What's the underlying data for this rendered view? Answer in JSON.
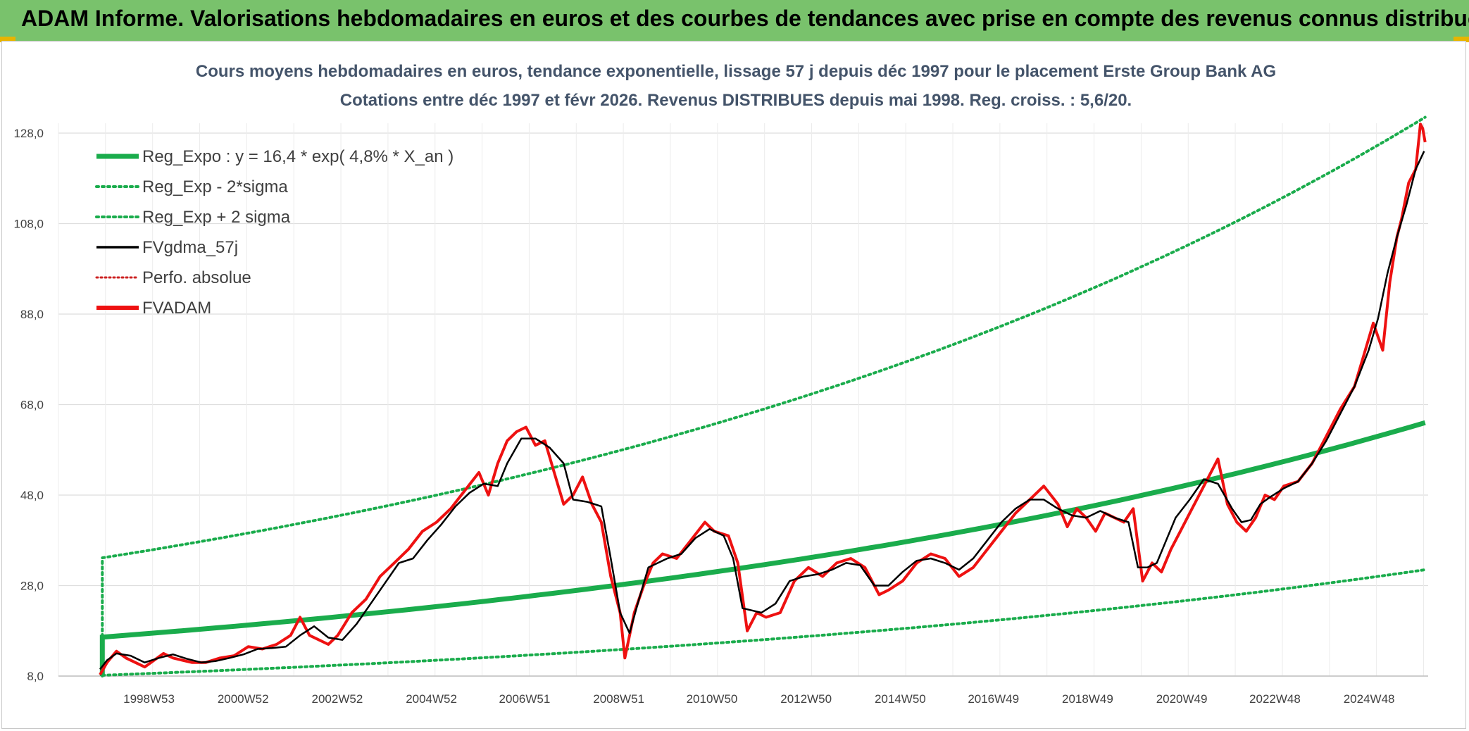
{
  "header": {
    "title": "ADAM Informe. Valorisations hebdomadaires en euros et des courbes de tendances avec prise en compte des revenus connus distribués"
  },
  "colors": {
    "banner": "#79c26c",
    "reg": "#1aac4c",
    "fv": "#000000",
    "adam": "#ee1111",
    "perfo": "#cc2222"
  },
  "chart_data": {
    "type": "line",
    "title_lines": [
      "Cours moyens hebdomadaires en euros, tendance exponentielle, lissage 57 j depuis déc 1997 pour le placement Erste Group Bank AG",
      "Cotations entre déc 1997 et févr 2026. Revenus DISTRIBUES depuis mai 1998. Reg. croiss. : 5,6/20."
    ],
    "x_range": [
      1997.92,
      2026.12
    ],
    "ylim": [
      8,
      128
    ],
    "yticks": [
      "8,0",
      "28,0",
      "48,0",
      "68,0",
      "88,0",
      "108,0",
      "128,0"
    ],
    "ytick_values": [
      8,
      28,
      48,
      68,
      88,
      108,
      128
    ],
    "xticks": [
      {
        "label": "1998W53",
        "x": 1998.99
      },
      {
        "label": "2000W52",
        "x": 2000.99
      },
      {
        "label": "2002W52",
        "x": 2002.99
      },
      {
        "label": "2004W52",
        "x": 2004.99
      },
      {
        "label": "2006W51",
        "x": 2006.97
      },
      {
        "label": "2008W51",
        "x": 2008.97
      },
      {
        "label": "2010W50",
        "x": 2010.95
      },
      {
        "label": "2012W50",
        "x": 2012.95
      },
      {
        "label": "2014W50",
        "x": 2014.95
      },
      {
        "label": "2016W49",
        "x": 2016.93
      },
      {
        "label": "2018W49",
        "x": 2018.93
      },
      {
        "label": "2020W49",
        "x": 2020.93
      },
      {
        "label": "2022W48",
        "x": 2022.91
      },
      {
        "label": "2024W48",
        "x": 2024.91
      }
    ],
    "grid": true,
    "legend_position": "top-left",
    "regression": {
      "a": 16.4,
      "rate": 0.048,
      "lower": 8.3,
      "upper": 33.2,
      "lower_end": 31.5,
      "upper_end": 131.5,
      "end": 64.0
    },
    "series": [
      {
        "name": "Reg_Expo : y = 16,4 * exp( 4,8% *  X_an )",
        "style": "solid-thick",
        "color": "#1aac4c"
      },
      {
        "name": "Reg_Exp - 2*sigma",
        "style": "dotted",
        "color": "#1aac4c"
      },
      {
        "name": "Reg_Exp + 2 sigma",
        "style": "dotted",
        "color": "#1aac4c"
      },
      {
        "name": "FVgdma_57j",
        "style": "solid",
        "color": "#000000",
        "x": [
          1997.95,
          1998.1,
          1998.3,
          1998.6,
          1998.9,
          1999.2,
          1999.5,
          1999.8,
          2000.1,
          2000.4,
          2000.7,
          2001.0,
          2001.3,
          2001.6,
          2001.9,
          2002.2,
          2002.5,
          2002.8,
          2003.1,
          2003.4,
          2003.7,
          2004.0,
          2004.3,
          2004.6,
          2004.9,
          2005.2,
          2005.5,
          2005.8,
          2006.1,
          2006.4,
          2006.6,
          2006.9,
          2007.2,
          2007.5,
          2007.8,
          2008.0,
          2008.3,
          2008.6,
          2008.8,
          2009.0,
          2009.2,
          2009.4,
          2009.6,
          2009.8,
          2010.0,
          2010.3,
          2010.6,
          2010.9,
          2011.2,
          2011.4,
          2011.6,
          2011.8,
          2012.0,
          2012.3,
          2012.6,
          2012.9,
          2013.2,
          2013.5,
          2013.8,
          2014.1,
          2014.4,
          2014.7,
          2015.0,
          2015.3,
          2015.6,
          2015.9,
          2016.2,
          2016.5,
          2016.8,
          2017.1,
          2017.4,
          2017.7,
          2018.0,
          2018.3,
          2018.6,
          2018.9,
          2019.2,
          2019.5,
          2019.8,
          2020.0,
          2020.2,
          2020.4,
          2020.6,
          2020.8,
          2021.1,
          2021.4,
          2021.7,
          2022.0,
          2022.2,
          2022.4,
          2022.6,
          2022.8,
          2023.1,
          2023.4,
          2023.7,
          2024.0,
          2024.3,
          2024.6,
          2024.9,
          2025.1,
          2025.3,
          2025.5,
          2025.7,
          2025.9,
          2026.08
        ],
        "values": [
          9.5,
          11.5,
          13.0,
          12.5,
          11.0,
          12.0,
          12.8,
          11.8,
          11.0,
          11.3,
          12.0,
          12.8,
          14.0,
          14.2,
          14.5,
          17.0,
          19.0,
          16.5,
          16.0,
          19.5,
          24.0,
          28.5,
          33.0,
          34.0,
          38.0,
          41.5,
          45.5,
          48.5,
          50.5,
          50.0,
          55.0,
          60.5,
          60.5,
          58.5,
          55.0,
          47.0,
          46.5,
          45.5,
          34.0,
          22.0,
          17.5,
          25.0,
          32.0,
          33.0,
          34.0,
          35.0,
          38.5,
          40.5,
          39.0,
          34.0,
          23.0,
          22.5,
          22.0,
          24.0,
          29.0,
          30.0,
          30.5,
          31.5,
          33.0,
          32.5,
          28.0,
          28.0,
          31.0,
          33.5,
          34.0,
          33.0,
          31.5,
          34.0,
          38.0,
          42.0,
          45.0,
          47.0,
          47.0,
          45.0,
          43.5,
          43.0,
          44.5,
          43.0,
          42.0,
          32.0,
          32.0,
          33.0,
          38.0,
          43.0,
          47.0,
          51.5,
          50.5,
          45.0,
          42.0,
          42.5,
          46.0,
          47.5,
          49.5,
          51.0,
          55.0,
          60.0,
          66.0,
          72.0,
          80.0,
          87.0,
          97.0,
          105.0,
          112.0,
          120.0,
          124.0
        ]
      },
      {
        "name": "Perfo. absolue",
        "style": "dotted",
        "color": "#cc2222"
      },
      {
        "name": "FVADAM",
        "style": "solid-thick",
        "color": "#ee1111",
        "x": [
          1997.95,
          1998.1,
          1998.3,
          1998.5,
          1998.7,
          1998.9,
          1999.1,
          1999.3,
          1999.5,
          1999.7,
          1999.9,
          2000.2,
          2000.5,
          2000.8,
          2001.1,
          2001.4,
          2001.7,
          2002.0,
          2002.2,
          2002.4,
          2002.6,
          2002.8,
          2003.0,
          2003.3,
          2003.6,
          2003.9,
          2004.2,
          2004.5,
          2004.8,
          2005.1,
          2005.4,
          2005.7,
          2006.0,
          2006.2,
          2006.4,
          2006.6,
          2006.8,
          2007.0,
          2007.2,
          2007.4,
          2007.6,
          2007.8,
          2008.0,
          2008.2,
          2008.4,
          2008.6,
          2008.8,
          2009.0,
          2009.1,
          2009.3,
          2009.5,
          2009.7,
          2009.9,
          2010.2,
          2010.5,
          2010.8,
          2011.0,
          2011.3,
          2011.5,
          2011.7,
          2011.9,
          2012.1,
          2012.4,
          2012.7,
          2013.0,
          2013.3,
          2013.6,
          2013.9,
          2014.2,
          2014.5,
          2014.7,
          2015.0,
          2015.3,
          2015.6,
          2015.9,
          2016.2,
          2016.5,
          2016.8,
          2017.1,
          2017.4,
          2017.7,
          2018.0,
          2018.3,
          2018.5,
          2018.7,
          2018.9,
          2019.1,
          2019.3,
          2019.5,
          2019.7,
          2019.9,
          2020.1,
          2020.3,
          2020.5,
          2020.7,
          2020.9,
          2021.1,
          2021.4,
          2021.7,
          2021.9,
          2022.1,
          2022.3,
          2022.5,
          2022.7,
          2022.9,
          2023.1,
          2023.4,
          2023.7,
          2024.0,
          2024.3,
          2024.6,
          2024.8,
          2025.0,
          2025.2,
          2025.35,
          2025.5,
          2025.6,
          2025.75,
          2025.9,
          2026.0,
          2026.05,
          2026.1
        ],
        "values": [
          8.3,
          11.0,
          13.5,
          12.0,
          11.0,
          10.0,
          11.5,
          13.0,
          12.0,
          11.5,
          11.0,
          11.0,
          12.0,
          12.5,
          14.5,
          14.0,
          15.0,
          17.0,
          21.0,
          17.0,
          16.0,
          15.0,
          17.0,
          22.0,
          25.0,
          30.0,
          33.0,
          36.0,
          40.0,
          42.0,
          45.0,
          49.0,
          53.0,
          48.0,
          55.0,
          60.0,
          62.0,
          63.0,
          59.0,
          60.0,
          53.0,
          46.0,
          48.0,
          52.0,
          46.0,
          42.0,
          30.0,
          22.0,
          12.0,
          22.0,
          28.0,
          33.0,
          35.0,
          34.0,
          38.0,
          42.0,
          40.0,
          39.0,
          33.0,
          18.0,
          22.0,
          21.0,
          22.0,
          29.0,
          32.0,
          30.0,
          33.0,
          34.0,
          32.0,
          26.0,
          27.0,
          29.0,
          33.0,
          35.0,
          34.0,
          30.0,
          32.0,
          36.0,
          40.0,
          44.0,
          47.0,
          50.0,
          46.0,
          41.0,
          45.0,
          43.0,
          40.0,
          44.0,
          43.0,
          42.0,
          45.0,
          29.0,
          33.0,
          31.0,
          36.0,
          40.0,
          44.0,
          50.0,
          56.0,
          46.0,
          42.0,
          40.0,
          43.0,
          48.0,
          47.0,
          50.0,
          51.0,
          55.0,
          61.0,
          67.0,
          72.0,
          79.0,
          86.0,
          80.0,
          95.0,
          105.0,
          109.0,
          117.0,
          120.0,
          130.0,
          129.0,
          126.0
        ]
      }
    ]
  }
}
